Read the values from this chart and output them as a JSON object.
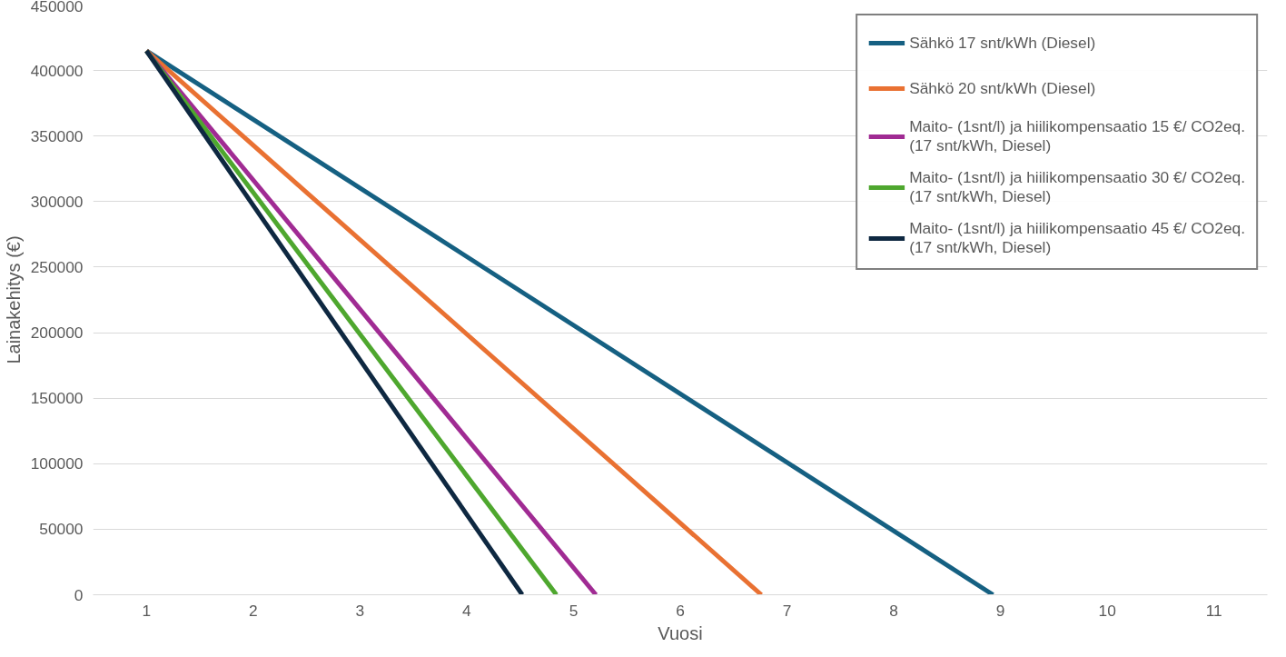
{
  "chart_data": {
    "type": "line",
    "xlabel": "Vuosi",
    "ylabel": "Lainakehitys (€)",
    "xlim": [
      0.5,
      11.5
    ],
    "xticks": [
      1,
      2,
      3,
      4,
      5,
      6,
      7,
      8,
      9,
      10,
      11
    ],
    "ylim": [
      0,
      450000
    ],
    "yticks": [
      0,
      50000,
      100000,
      150000,
      200000,
      250000,
      300000,
      350000,
      400000,
      450000
    ],
    "grid": "y",
    "legend": "top right",
    "marker": "none",
    "line_style": "solid",
    "series": [
      {
        "name": "Sähkö 17 snt/kWh (Diesel)",
        "color": "#156082",
        "x": [
          1,
          8.93
        ],
        "values": [
          415000,
          0
        ]
      },
      {
        "name": "Sähkö 20 snt/kWh (Diesel)",
        "color": "#e97132",
        "x": [
          1,
          6.76
        ],
        "values": [
          415000,
          0
        ]
      },
      {
        "name": "Maito- (1snt/l) ja hiilikompensaatio 15 €/ CO2eq. (17 snt/kWh, Diesel)",
        "color": "#a02b93",
        "x": [
          1,
          5.21
        ],
        "values": [
          415000,
          0
        ]
      },
      {
        "name": "Maito- (1snt/l) ja hiilikompensaatio 30 €/ CO2eq. (17 snt/kWh, Diesel)",
        "color": "#4ea72e",
        "x": [
          1,
          4.84
        ],
        "values": [
          415000,
          0
        ]
      },
      {
        "name": "Maito- (1snt/l) ja hiilikompensaatio 45 €/ CO2eq. (17 snt/kWh, Diesel)",
        "color": "#0e2841",
        "x": [
          1,
          4.52
        ],
        "values": [
          415000,
          0
        ]
      }
    ]
  }
}
